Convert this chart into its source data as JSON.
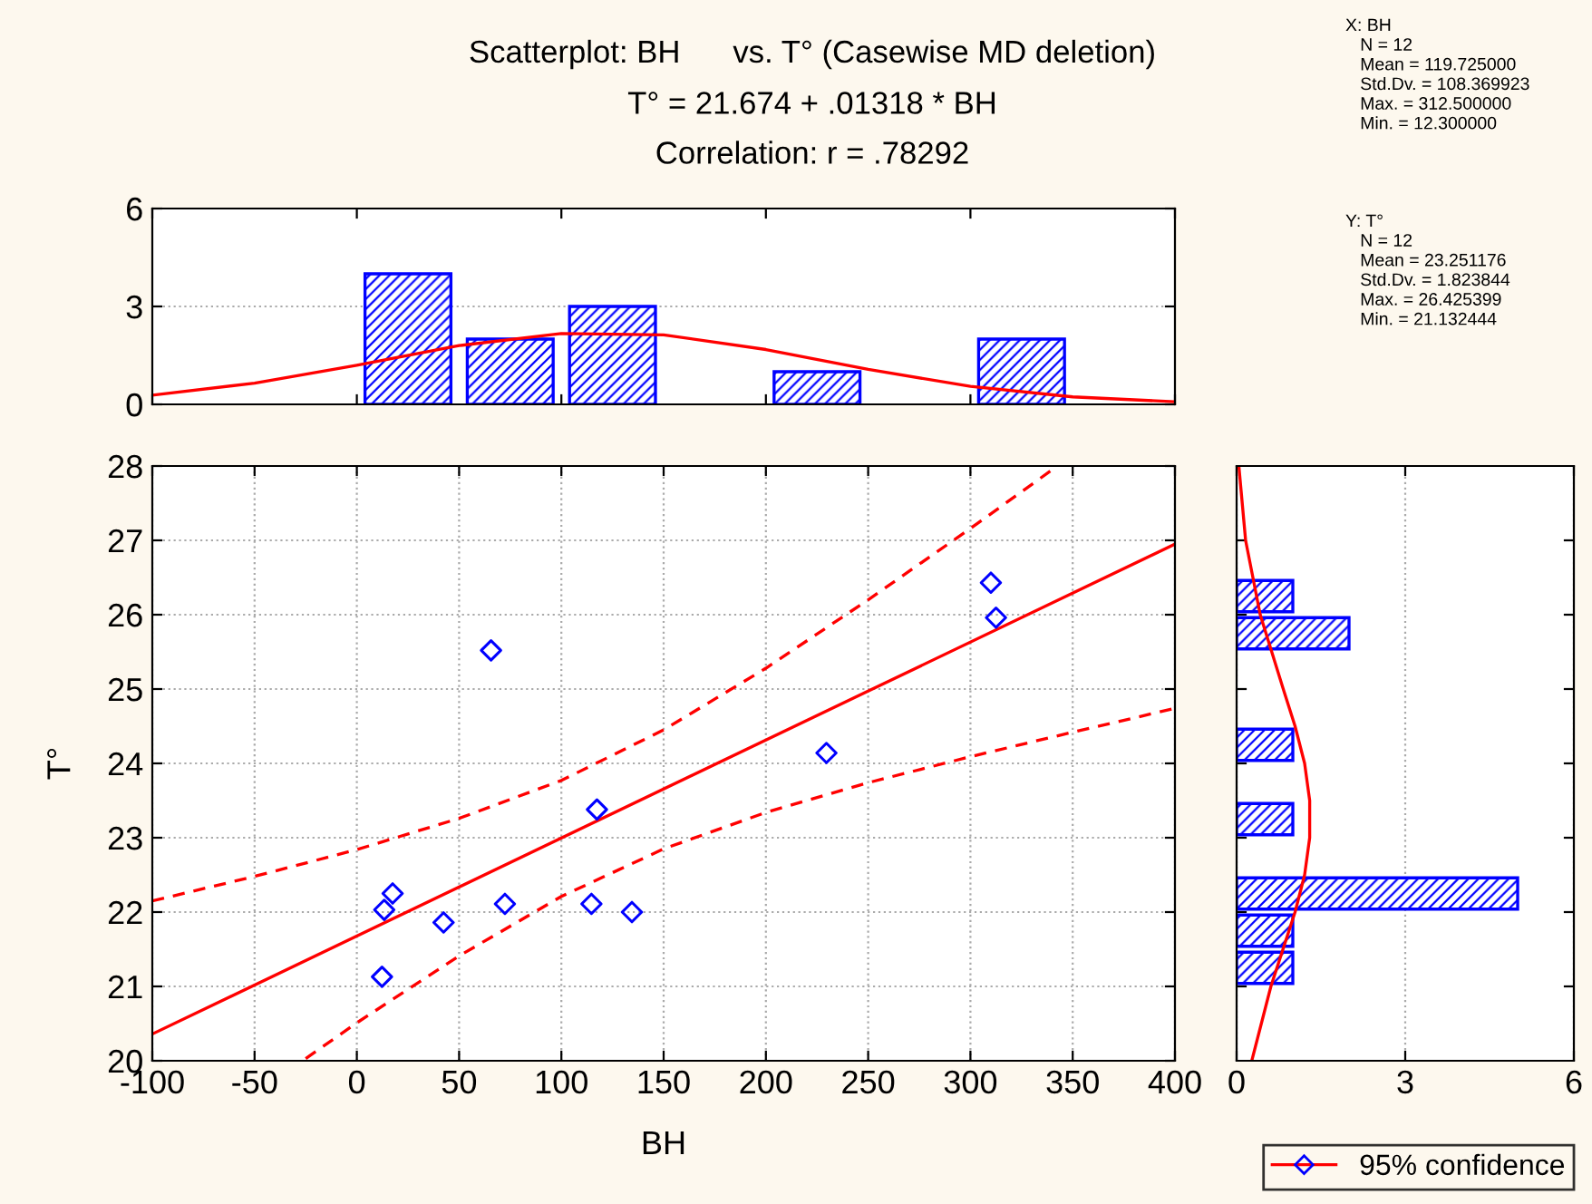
{
  "chart_data": [
    {
      "type": "histogram",
      "title": "Scatterplot: BH      vs. T° (Casewise MD deletion)",
      "subtitle": "T° = 21.674 + .01318 * BH\nCorrelation: r = .78292",
      "annotations": [
        "X: BH\n   N = 12\n   Mean = 119.725000\n   Std.Dv. = 108.369923\n   Max. = 312.500000\n   Min. = 12.300000",
        "Y: T°\n   N = 12\n   Mean = 23.251176\n   Std.Dv. = 1.823844\n   Max. = 26.425399\n   Min. = 21.132444"
      ],
      "bins": [
        0,
        50,
        100,
        150,
        200,
        250,
        300,
        350
      ],
      "series": [
        {
          "color": "#0000ff",
          "values": [
            4,
            2,
            3,
            0,
            1,
            0,
            2
          ]
        },
        {
          "type": "line",
          "color": "#ff0000",
          "x": [
            -100,
            -50,
            0,
            50,
            100,
            150,
            200,
            250,
            300,
            350,
            400
          ],
          "values": [
            0.28,
            0.65,
            1.2,
            1.8,
            2.17,
            2.13,
            1.68,
            1.07,
            0.55,
            0.23,
            0.08
          ]
        }
      ],
      "xlim": [
        -100,
        400
      ],
      "ylim": [
        0,
        6
      ],
      "yticks": [
        0,
        3,
        6
      ],
      "grid": "y",
      "tick_labels": "y"
    },
    {
      "type": "scatter",
      "xlabel": "BH",
      "ylabel": "T°",
      "series": [
        {
          "color": "#0000ff",
          "marker": "diamond",
          "x": [
            65.6,
            310,
            312.5,
            229.6,
            117.4,
            17.5,
            13.4,
            12.3,
            42.4,
            72.4,
            114.7,
            134.5
          ],
          "values": [
            25.52,
            26.43,
            25.96,
            24.14,
            23.38,
            22.25,
            22.03,
            21.13,
            21.86,
            22.11,
            22.11,
            22.0
          ]
        },
        {
          "type": "line",
          "name": "95% confidence",
          "color": "#ff0000",
          "line_style": "solid",
          "x": [
            -100,
            400
          ],
          "values": [
            20.36,
            26.95
          ]
        },
        {
          "type": "line",
          "color": "#ff0000",
          "line_style": "dashed",
          "x": [
            -100,
            -50,
            0,
            50,
            100,
            150,
            200,
            250,
            300,
            340
          ],
          "values": [
            22.15,
            22.48,
            22.84,
            23.26,
            23.77,
            24.45,
            25.28,
            26.2,
            27.16,
            27.95
          ]
        },
        {
          "type": "line",
          "color": "#ff0000",
          "line_style": "dashed",
          "x": [
            -25,
            0,
            50,
            100,
            150,
            200,
            250,
            300,
            350,
            400
          ],
          "values": [
            20.03,
            20.51,
            21.41,
            22.21,
            22.85,
            23.34,
            23.74,
            24.09,
            24.42,
            24.74
          ]
        }
      ],
      "xlim": [
        -100,
        400
      ],
      "xticks": [
        -100,
        -50,
        0,
        50,
        100,
        150,
        200,
        250,
        300,
        350,
        400
      ],
      "ylim": [
        20,
        28
      ],
      "yticks": [
        20,
        21,
        22,
        23,
        24,
        25,
        26,
        27,
        28
      ],
      "grid": true,
      "legend": "bottom right"
    },
    {
      "type": "histogram",
      "orientation": "horizontal",
      "bins": [
        20,
        20.5,
        21,
        21.5,
        22,
        22.5,
        23,
        23.5,
        24,
        24.5,
        25,
        25.5,
        26,
        26.5,
        27,
        27.5,
        28
      ],
      "series": [
        {
          "color": "#0000ff",
          "values": [
            0,
            0,
            1,
            1,
            5,
            0,
            1,
            0,
            1,
            0,
            0,
            2,
            1,
            0,
            0,
            0
          ]
        },
        {
          "type": "line",
          "color": "#ff0000",
          "x": [
            20,
            21,
            22,
            22.5,
            23,
            23.5,
            24,
            24.5,
            25,
            26,
            27,
            28
          ],
          "values": [
            0.27,
            0.61,
            1.04,
            1.21,
            1.3,
            1.3,
            1.21,
            1.04,
            0.83,
            0.42,
            0.16,
            0.04
          ]
        }
      ],
      "ylim": [
        20,
        28
      ],
      "xlim": [
        0,
        6
      ],
      "xticks": [
        0,
        3,
        6
      ],
      "grid": "x",
      "tick_labels": "x"
    }
  ]
}
